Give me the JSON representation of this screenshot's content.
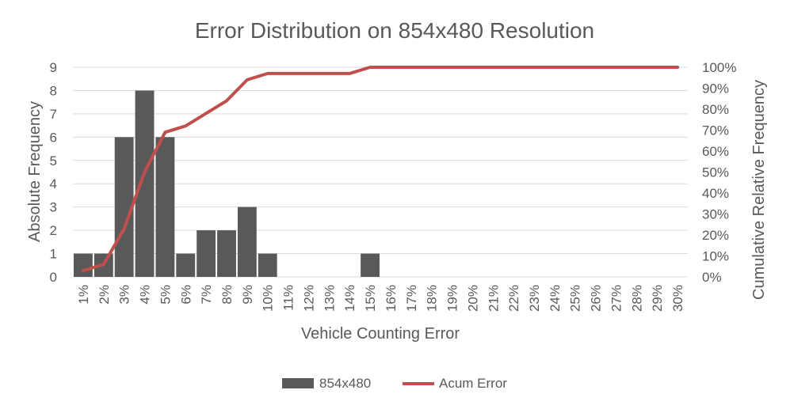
{
  "chart_data": {
    "type": "bar",
    "title": "Error Distribution on 854x480 Resolution",
    "xlabel": "Vehicle Counting Error",
    "ylabel": "Absolute Frequency",
    "y2label": "Cumulative Relative Frequency",
    "categories": [
      "1%",
      "2%",
      "3%",
      "4%",
      "5%",
      "6%",
      "7%",
      "8%",
      "9%",
      "10%",
      "11%",
      "12%",
      "13%",
      "14%",
      "15%",
      "16%",
      "17%",
      "18%",
      "19%",
      "20%",
      "21%",
      "22%",
      "23%",
      "24%",
      "25%",
      "26%",
      "27%",
      "28%",
      "29%",
      "30%"
    ],
    "ylim": [
      0,
      9
    ],
    "yticks": [
      "0",
      "1",
      "2",
      "3",
      "4",
      "5",
      "6",
      "7",
      "8",
      "9"
    ],
    "y2lim": [
      0,
      1
    ],
    "y2ticks": [
      "0%",
      "10%",
      "20%",
      "30%",
      "40%",
      "50%",
      "60%",
      "70%",
      "80%",
      "90%",
      "100%"
    ],
    "grid": true,
    "legend_position": "bottom",
    "series": [
      {
        "name": "854x480",
        "type": "bar",
        "axis": "left",
        "color": "#595959",
        "values": [
          1,
          1,
          6,
          8,
          6,
          1,
          2,
          2,
          3,
          1,
          0,
          0,
          0,
          0,
          1,
          0,
          0,
          0,
          0,
          0,
          0,
          0,
          0,
          0,
          0,
          0,
          0,
          0,
          0,
          0
        ]
      },
      {
        "name": "Acum Error",
        "type": "line",
        "axis": "right",
        "color": "#c0504d",
        "values": [
          0.03,
          0.06,
          0.23,
          0.5,
          0.69,
          0.72,
          0.78,
          0.84,
          0.94,
          0.97,
          0.97,
          0.97,
          0.97,
          0.97,
          1.0,
          1.0,
          1.0,
          1.0,
          1.0,
          1.0,
          1.0,
          1.0,
          1.0,
          1.0,
          1.0,
          1.0,
          1.0,
          1.0,
          1.0,
          1.0
        ]
      }
    ]
  }
}
